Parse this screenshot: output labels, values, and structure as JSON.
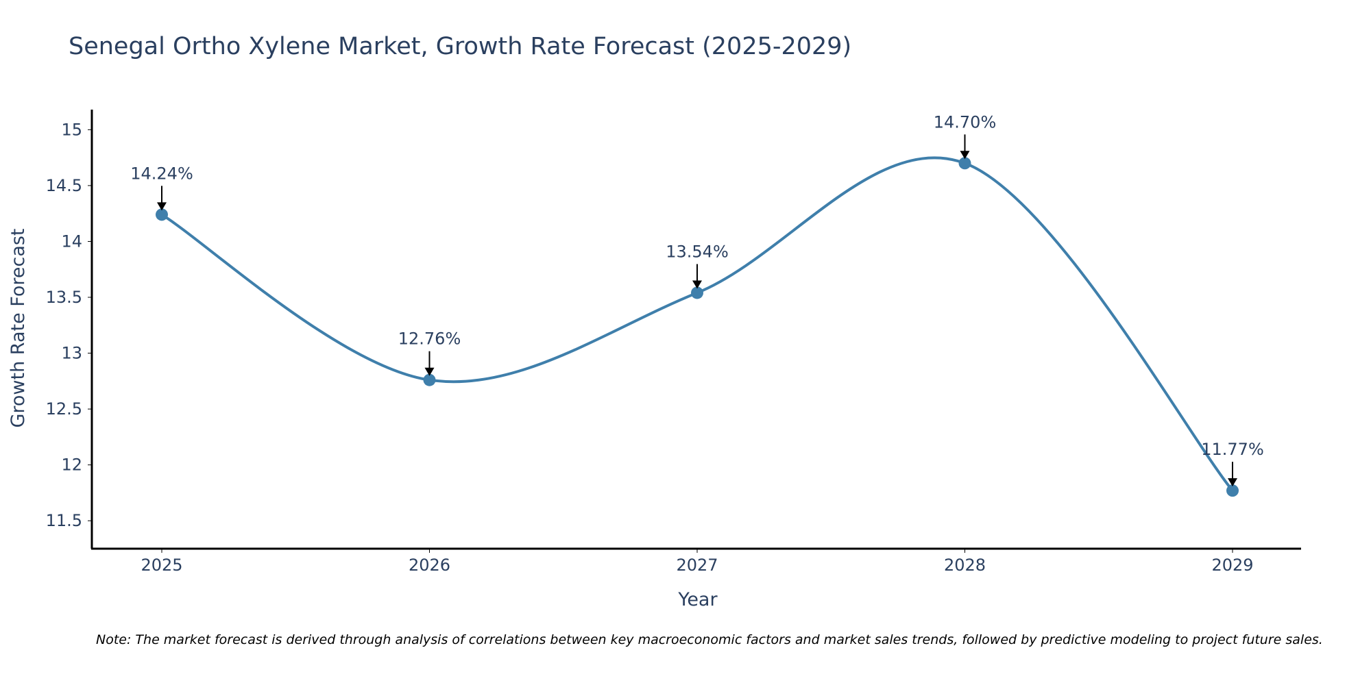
{
  "chart_data": {
    "type": "line",
    "title": "Senegal Ortho Xylene Market, Growth Rate Forecast (2025-2029)",
    "xlabel": "Year",
    "ylabel": "Growth Rate Forecast",
    "categories": [
      "2025",
      "2026",
      "2027",
      "2028",
      "2029"
    ],
    "values": [
      14.24,
      12.76,
      13.54,
      14.7,
      11.77
    ],
    "data_labels": [
      "14.24%",
      "12.76%",
      "13.54%",
      "14.70%",
      "11.77%"
    ],
    "y_ticks": [
      11.5,
      12,
      12.5,
      13,
      13.5,
      14,
      14.5,
      15
    ],
    "y_tick_labels": [
      "11.5",
      "12",
      "12.5",
      "13",
      "13.5",
      "14",
      "14.5",
      "15"
    ],
    "ylim": [
      11.25,
      15.18
    ],
    "line_color": "#3f7fab",
    "grid": false,
    "smoothing": "spline",
    "note": "Note: The market forecast is derived through analysis of correlations between key macroeconomic factors and market sales trends, followed by predictive modeling to project future sales."
  }
}
